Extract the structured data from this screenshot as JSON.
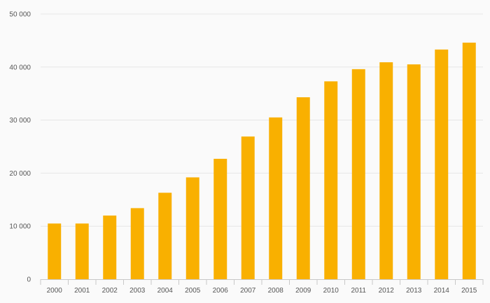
{
  "chart_data": {
    "type": "bar",
    "categories": [
      "2000",
      "2001",
      "2002",
      "2003",
      "2004",
      "2005",
      "2006",
      "2007",
      "2008",
      "2009",
      "2010",
      "2011",
      "2012",
      "2013",
      "2014",
      "2015"
    ],
    "values": [
      10500,
      10500,
      12000,
      13400,
      16300,
      19200,
      22700,
      26900,
      30500,
      34300,
      37300,
      39600,
      40900,
      40500,
      43300,
      44600
    ],
    "ylim": [
      0,
      50000
    ],
    "yticks": [
      0,
      10000,
      20000,
      30000,
      40000,
      50000
    ],
    "ytick_labels": [
      "0",
      "10 000",
      "20 000",
      "30 000",
      "40 000",
      "50 000"
    ],
    "grid": true,
    "bar_color": "#f9b000",
    "title": "",
    "xlabel": "",
    "ylabel": ""
  }
}
